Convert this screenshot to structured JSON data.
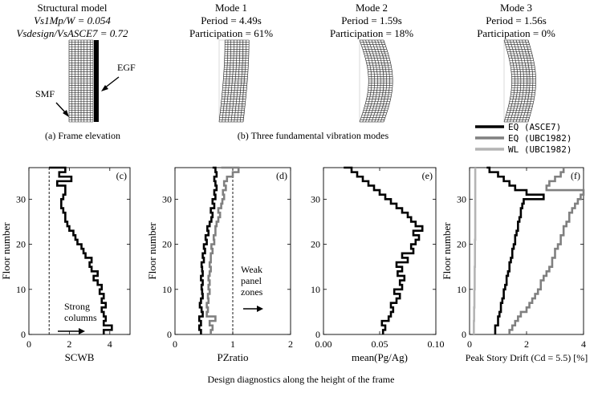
{
  "top": {
    "structural": {
      "title": "Structural model",
      "line1": "Vs1Mp/W = 0.054",
      "line2": "Vsdesign/VsASCE7 = 0.72",
      "smf_label": "SMF",
      "egf_label": "EGF",
      "caption": "(a) Frame elevation"
    },
    "modes": [
      {
        "title": "Mode 1",
        "period": "Period = 4.49s",
        "participation": "Participation = 61%",
        "shape": "first"
      },
      {
        "title": "Mode 2",
        "period": "Period = 1.59s",
        "participation": "Participation = 18%",
        "shape": "second"
      },
      {
        "title": "Mode 3",
        "period": "Period = 1.56s",
        "participation": "Participation = 0%",
        "shape": "third"
      }
    ],
    "modes_caption": "(b) Three fundamental vibration modes",
    "legend": [
      {
        "label": "EQ (ASCE7)",
        "color": "#000000"
      },
      {
        "label": "EQ (UBC1982)",
        "color": "#808080"
      },
      {
        "label": "WL (UBC1982)",
        "color": "#b4b4b4"
      }
    ]
  },
  "bottom_caption": "Design diagnostics along the height of the frame",
  "chart_data": [
    {
      "type": "line",
      "panel": "(c)",
      "xlabel": "SCWB",
      "ylabel": "Floor number",
      "xlim": [
        0,
        5
      ],
      "ylim": [
        0,
        37
      ],
      "xticks": [
        "0",
        "2",
        "4"
      ],
      "yticks": [
        "0",
        "10",
        "20",
        "30"
      ],
      "reference_x": 1,
      "annotation": "Strong columns",
      "series": [
        {
          "color": "#000000",
          "x": [
            3.7,
            4.1,
            3.7,
            3.8,
            3.7,
            3.6,
            3.8,
            3.6,
            3.7,
            3.5,
            3.6,
            3.4,
            3.2,
            3.4,
            3.1,
            3.0,
            3.1,
            2.8,
            2.7,
            2.6,
            2.4,
            2.3,
            2.2,
            2.0,
            1.9,
            1.8,
            1.8,
            1.7,
            1.6,
            1.6,
            1.7,
            1.8,
            1.8,
            1.4,
            2.1,
            1.5,
            1.8,
            1.0
          ],
          "y": [
            0,
            1,
            2,
            3,
            4,
            5,
            6,
            7,
            8,
            9,
            10,
            11,
            12,
            13,
            14,
            15,
            16,
            17,
            18,
            19,
            20,
            21,
            22,
            23,
            24,
            25,
            26,
            27,
            28,
            29,
            30,
            31,
            32,
            33,
            34,
            35,
            36,
            37
          ]
        }
      ]
    },
    {
      "type": "line",
      "panel": "(d)",
      "xlabel": "PZratio",
      "ylabel": "Floor number",
      "xlim": [
        0,
        2
      ],
      "ylim": [
        0,
        37
      ],
      "xticks": [
        "0",
        "1",
        "2"
      ],
      "yticks": [
        "0",
        "10",
        "20",
        "30"
      ],
      "reference_x": 1,
      "annotation": "Weak panel zones",
      "series": [
        {
          "color": "#000000",
          "x": [
            0.45,
            0.42,
            0.45,
            0.42,
            0.48,
            0.46,
            0.43,
            0.45,
            0.48,
            0.47,
            0.46,
            0.48,
            0.45,
            0.48,
            0.47,
            0.46,
            0.5,
            0.48,
            0.52,
            0.5,
            0.55,
            0.53,
            0.58,
            0.56,
            0.6,
            0.63,
            0.65,
            0.62,
            0.68,
            0.65,
            0.7,
            0.68,
            0.72,
            0.7,
            0.68,
            0.72,
            0.7,
            0.65
          ],
          "y": [
            0,
            1,
            2,
            3,
            4,
            5,
            6,
            7,
            8,
            9,
            10,
            11,
            12,
            13,
            14,
            15,
            16,
            17,
            18,
            19,
            20,
            21,
            22,
            23,
            24,
            25,
            26,
            27,
            28,
            29,
            30,
            31,
            32,
            33,
            34,
            35,
            36,
            37
          ]
        },
        {
          "color": "#808080",
          "x": [
            0.62,
            0.65,
            0.6,
            0.7,
            0.55,
            0.57,
            0.55,
            0.58,
            0.57,
            0.6,
            0.58,
            0.6,
            0.58,
            0.6,
            0.62,
            0.6,
            0.62,
            0.62,
            0.65,
            0.63,
            0.68,
            0.67,
            0.7,
            0.7,
            0.72,
            0.75,
            0.78,
            0.75,
            0.8,
            0.82,
            0.85,
            0.83,
            0.88,
            0.85,
            0.9,
            1.0,
            1.1,
            0.8
          ],
          "y": [
            0,
            1,
            2,
            3,
            4,
            5,
            6,
            7,
            8,
            9,
            10,
            11,
            12,
            13,
            14,
            15,
            16,
            17,
            18,
            19,
            20,
            21,
            22,
            23,
            24,
            25,
            26,
            27,
            28,
            29,
            30,
            31,
            32,
            33,
            34,
            35,
            36,
            37
          ]
        }
      ]
    },
    {
      "type": "line",
      "panel": "(e)",
      "xlabel": "mean(Pg/Ag)",
      "ylabel": "",
      "xlim": [
        0,
        0.1
      ],
      "ylim": [
        0,
        37
      ],
      "xticks": [
        "0.00",
        "0.05",
        "0.10"
      ],
      "yticks": [
        "0",
        "10",
        "20",
        "30"
      ],
      "series": [
        {
          "color": "#000000",
          "x": [
            0.053,
            0.055,
            0.052,
            0.058,
            0.06,
            0.062,
            0.06,
            0.065,
            0.068,
            0.063,
            0.07,
            0.068,
            0.072,
            0.066,
            0.07,
            0.065,
            0.075,
            0.07,
            0.08,
            0.078,
            0.082,
            0.085,
            0.08,
            0.088,
            0.082,
            0.078,
            0.075,
            0.07,
            0.065,
            0.06,
            0.055,
            0.05,
            0.045,
            0.04,
            0.035,
            0.03,
            0.025,
            0.018
          ],
          "y": [
            0,
            1,
            2,
            3,
            4,
            5,
            6,
            7,
            8,
            9,
            10,
            11,
            12,
            13,
            14,
            15,
            16,
            17,
            18,
            19,
            20,
            21,
            22,
            23,
            24,
            25,
            26,
            27,
            28,
            29,
            30,
            31,
            32,
            33,
            34,
            35,
            36,
            37
          ]
        }
      ]
    },
    {
      "type": "line",
      "panel": "(f)",
      "xlabel": "Peak Story Drift (Cd = 5.5) [%]",
      "ylabel": "Floor number",
      "xlim": [
        0,
        4
      ],
      "ylim": [
        0,
        37
      ],
      "xticks": [
        "0",
        "2",
        "4"
      ],
      "yticks": [
        "0",
        "10",
        "20",
        "30"
      ],
      "series": [
        {
          "name": "EQ (ASCE7)",
          "color": "#000000",
          "x": [
            0.9,
            0.9,
            1.0,
            1.0,
            1.05,
            1.1,
            1.1,
            1.15,
            1.2,
            1.2,
            1.25,
            1.3,
            1.3,
            1.35,
            1.4,
            1.4,
            1.45,
            1.5,
            1.5,
            1.55,
            1.6,
            1.6,
            1.65,
            1.7,
            1.7,
            1.75,
            1.8,
            1.8,
            1.85,
            1.9,
            2.6,
            2.0,
            1.6,
            1.4,
            1.2,
            1.0,
            0.7,
            0.6
          ],
          "y": [
            0,
            1,
            2,
            3,
            4,
            5,
            6,
            7,
            8,
            9,
            10,
            11,
            12,
            13,
            14,
            15,
            16,
            17,
            18,
            19,
            20,
            21,
            22,
            23,
            24,
            25,
            26,
            27,
            28,
            29,
            30,
            31,
            32,
            33,
            34,
            35,
            36,
            37
          ]
        },
        {
          "name": "EQ (UBC1982)",
          "color": "#808080",
          "x": [
            1.4,
            1.5,
            1.6,
            1.7,
            1.8,
            2.0,
            2.1,
            2.2,
            2.3,
            2.4,
            2.5,
            2.5,
            2.6,
            2.7,
            2.8,
            2.9,
            2.9,
            3.0,
            3.0,
            3.1,
            3.2,
            3.2,
            3.3,
            3.3,
            3.4,
            3.5,
            3.5,
            3.6,
            3.7,
            3.8,
            3.9,
            4.0,
            2.7,
            2.8,
            3.0,
            3.2,
            3.3,
            3.3
          ],
          "y": [
            0,
            1,
            2,
            3,
            4,
            5,
            6,
            7,
            8,
            9,
            10,
            11,
            12,
            13,
            14,
            15,
            16,
            17,
            18,
            19,
            20,
            21,
            22,
            23,
            24,
            25,
            26,
            27,
            28,
            29,
            30,
            31,
            32,
            33,
            34,
            35,
            36,
            37
          ]
        },
        {
          "name": "WL (UBC1982)",
          "color": "#b4b4b4",
          "x": [
            0.15,
            0.15,
            0.15,
            0.16,
            0.16,
            0.16,
            0.17,
            0.17,
            0.17,
            0.17,
            0.18,
            0.18,
            0.18,
            0.18,
            0.18,
            0.19,
            0.19,
            0.19,
            0.19,
            0.19,
            0.19,
            0.2,
            0.2,
            0.2,
            0.2,
            0.2,
            0.2,
            0.2,
            0.2,
            0.2,
            0.2,
            0.2,
            0.2,
            0.2,
            0.2,
            0.2,
            0.2,
            0.2
          ],
          "y": [
            0,
            1,
            2,
            3,
            4,
            5,
            6,
            7,
            8,
            9,
            10,
            11,
            12,
            13,
            14,
            15,
            16,
            17,
            18,
            19,
            20,
            21,
            22,
            23,
            24,
            25,
            26,
            27,
            28,
            29,
            30,
            31,
            32,
            33,
            34,
            35,
            36,
            37
          ]
        }
      ]
    }
  ]
}
